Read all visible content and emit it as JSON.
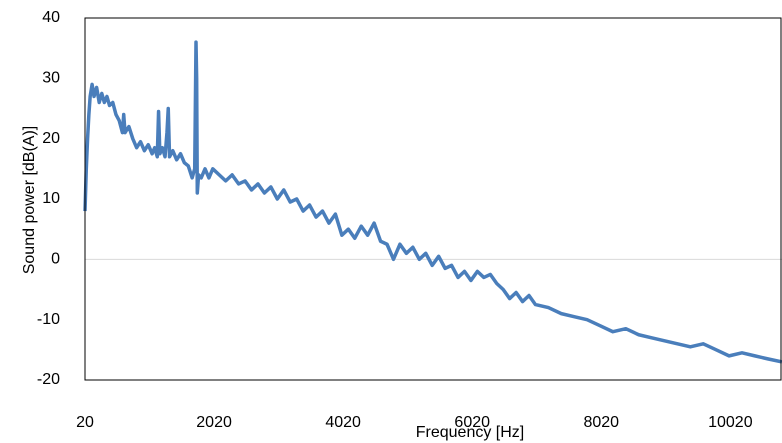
{
  "chart_data": {
    "type": "line",
    "x_label": "Frequency [Hz]",
    "y_label": "Sound power [dB(A)]",
    "x": [
      20,
      40,
      60,
      80,
      100,
      130,
      160,
      200,
      240,
      280,
      320,
      360,
      400,
      450,
      500,
      550,
      600,
      620,
      640,
      700,
      760,
      820,
      880,
      940,
      1000,
      1060,
      1100,
      1140,
      1160,
      1180,
      1220,
      1260,
      1290,
      1310,
      1330,
      1380,
      1440,
      1500,
      1560,
      1620,
      1680,
      1720,
      1740,
      1750,
      1760,
      1780,
      1820,
      1880,
      1940,
      2000,
      2100,
      2200,
      2300,
      2400,
      2500,
      2600,
      2700,
      2800,
      2900,
      3000,
      3100,
      3200,
      3300,
      3400,
      3500,
      3600,
      3700,
      3800,
      3900,
      4000,
      4100,
      4200,
      4300,
      4400,
      4500,
      4600,
      4700,
      4800,
      4900,
      5000,
      5100,
      5200,
      5300,
      5400,
      5500,
      5600,
      5700,
      5800,
      5900,
      6000,
      6100,
      6200,
      6300,
      6400,
      6500,
      6600,
      6700,
      6800,
      6900,
      7000,
      7200,
      7400,
      7600,
      7800,
      8000,
      8200,
      8400,
      8600,
      8800,
      9000,
      9200,
      9400,
      9600,
      9800,
      10000,
      10200,
      10400,
      10600,
      10820
    ],
    "series": [
      {
        "color": "#4a7ebb",
        "values": [
          8,
          15,
          20,
          24,
          27,
          29,
          27,
          28.5,
          26,
          27.5,
          26,
          27,
          25.5,
          26,
          24,
          23,
          21,
          24,
          21,
          22,
          20,
          18.5,
          19.5,
          18,
          19,
          17.5,
          18.5,
          17,
          24.5,
          17.5,
          18.5,
          17,
          21,
          25,
          17,
          18,
          16.5,
          17.5,
          16,
          15.5,
          13.5,
          15,
          36,
          30,
          11,
          14,
          13.5,
          15,
          13.5,
          15,
          14,
          13,
          14,
          12.5,
          13,
          11.5,
          12.5,
          11,
          12,
          10,
          11.5,
          9.5,
          10,
          8,
          9,
          7,
          8,
          6,
          7.5,
          4,
          5,
          3.5,
          5.5,
          4,
          6,
          3,
          2.5,
          0,
          2.5,
          1,
          2,
          0,
          1,
          -1,
          0.5,
          -1.5,
          -1,
          -3,
          -2,
          -3.5,
          -2,
          -3,
          -2.5,
          -4,
          -5,
          -6.5,
          -5.5,
          -7,
          -6,
          -7.5,
          -8,
          -9,
          -9.5,
          -10,
          -11,
          -12,
          -11.5,
          -12.5,
          -13,
          -13.5,
          -14,
          -14.5,
          -14,
          -15,
          -16,
          -15.5,
          -16,
          -16.5,
          -17
        ]
      }
    ],
    "xlim": [
      20,
      10820
    ],
    "xticks": [
      20,
      2020,
      4020,
      6020,
      8020,
      10020
    ],
    "ylim": [
      -20,
      40
    ],
    "yticks": [
      -20,
      -10,
      0,
      10,
      20,
      30,
      40
    ],
    "zero_line": true
  }
}
